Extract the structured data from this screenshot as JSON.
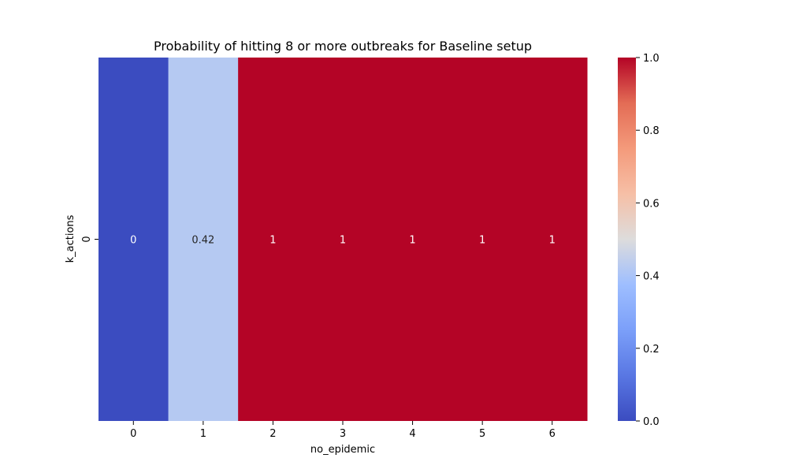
{
  "chart_data": {
    "type": "heatmap",
    "title": "Probability of hitting 8 or more outbreaks for Baseline setup",
    "xlabel": "no_epidemic",
    "ylabel": "k_actions",
    "x_categories": [
      "0",
      "1",
      "2",
      "3",
      "4",
      "5",
      "6"
    ],
    "y_categories": [
      "0"
    ],
    "values": [
      [
        0,
        0.42,
        1,
        1,
        1,
        1,
        1
      ]
    ],
    "cell_labels": [
      [
        "0",
        "0.42",
        "1",
        "1",
        "1",
        "1",
        "1"
      ]
    ],
    "colormap": "coolwarm",
    "vmin": 0,
    "vmax": 1,
    "colorbar_ticks": [
      "0.0",
      "0.2",
      "0.4",
      "0.6",
      "0.8",
      "1.0"
    ]
  }
}
